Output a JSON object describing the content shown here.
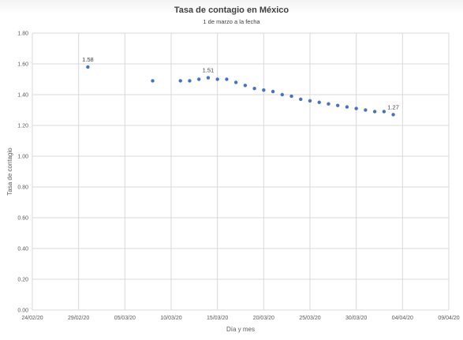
{
  "chart_data": {
    "type": "scatter",
    "title": "Tasa de contagio en México",
    "subtitle": "1 de marzo a la fecha",
    "xlabel": "Día y mes",
    "ylabel": "Tasa de contagio",
    "ylim": [
      0,
      1.8
    ],
    "yticks": [
      "0.00",
      "0.20",
      "0.40",
      "0.60",
      "0.80",
      "1.00",
      "1.20",
      "1.40",
      "1.60",
      "1.80"
    ],
    "xlim": [
      "2020-02-24",
      "2020-04-09"
    ],
    "xticks": [
      "24/02/20",
      "29/02/20",
      "05/03/20",
      "10/03/20",
      "15/03/20",
      "20/03/20",
      "25/03/20",
      "30/03/20",
      "04/04/20",
      "09/04/20"
    ],
    "grid": true,
    "legend": "none",
    "marker_color": "#4472C4",
    "points": [
      {
        "x": "2020-03-01",
        "y": 1.58
      },
      {
        "x": "2020-03-08",
        "y": 1.49
      },
      {
        "x": "2020-03-11",
        "y": 1.49
      },
      {
        "x": "2020-03-12",
        "y": 1.49
      },
      {
        "x": "2020-03-13",
        "y": 1.5
      },
      {
        "x": "2020-03-14",
        "y": 1.51
      },
      {
        "x": "2020-03-15",
        "y": 1.5
      },
      {
        "x": "2020-03-16",
        "y": 1.5
      },
      {
        "x": "2020-03-17",
        "y": 1.48
      },
      {
        "x": "2020-03-18",
        "y": 1.46
      },
      {
        "x": "2020-03-19",
        "y": 1.44
      },
      {
        "x": "2020-03-20",
        "y": 1.43
      },
      {
        "x": "2020-03-21",
        "y": 1.42
      },
      {
        "x": "2020-03-22",
        "y": 1.4
      },
      {
        "x": "2020-03-23",
        "y": 1.39
      },
      {
        "x": "2020-03-24",
        "y": 1.37
      },
      {
        "x": "2020-03-25",
        "y": 1.36
      },
      {
        "x": "2020-03-26",
        "y": 1.35
      },
      {
        "x": "2020-03-27",
        "y": 1.34
      },
      {
        "x": "2020-03-28",
        "y": 1.33
      },
      {
        "x": "2020-03-29",
        "y": 1.32
      },
      {
        "x": "2020-03-30",
        "y": 1.31
      },
      {
        "x": "2020-03-31",
        "y": 1.3
      },
      {
        "x": "2020-04-01",
        "y": 1.29
      },
      {
        "x": "2020-04-02",
        "y": 1.29
      },
      {
        "x": "2020-04-03",
        "y": 1.27
      }
    ],
    "data_labels": [
      {
        "x": "2020-03-01",
        "y": 1.58,
        "text": "1.58"
      },
      {
        "x": "2020-03-14",
        "y": 1.51,
        "text": "1.51"
      },
      {
        "x": "2020-04-03",
        "y": 1.27,
        "text": "1.27"
      }
    ]
  }
}
